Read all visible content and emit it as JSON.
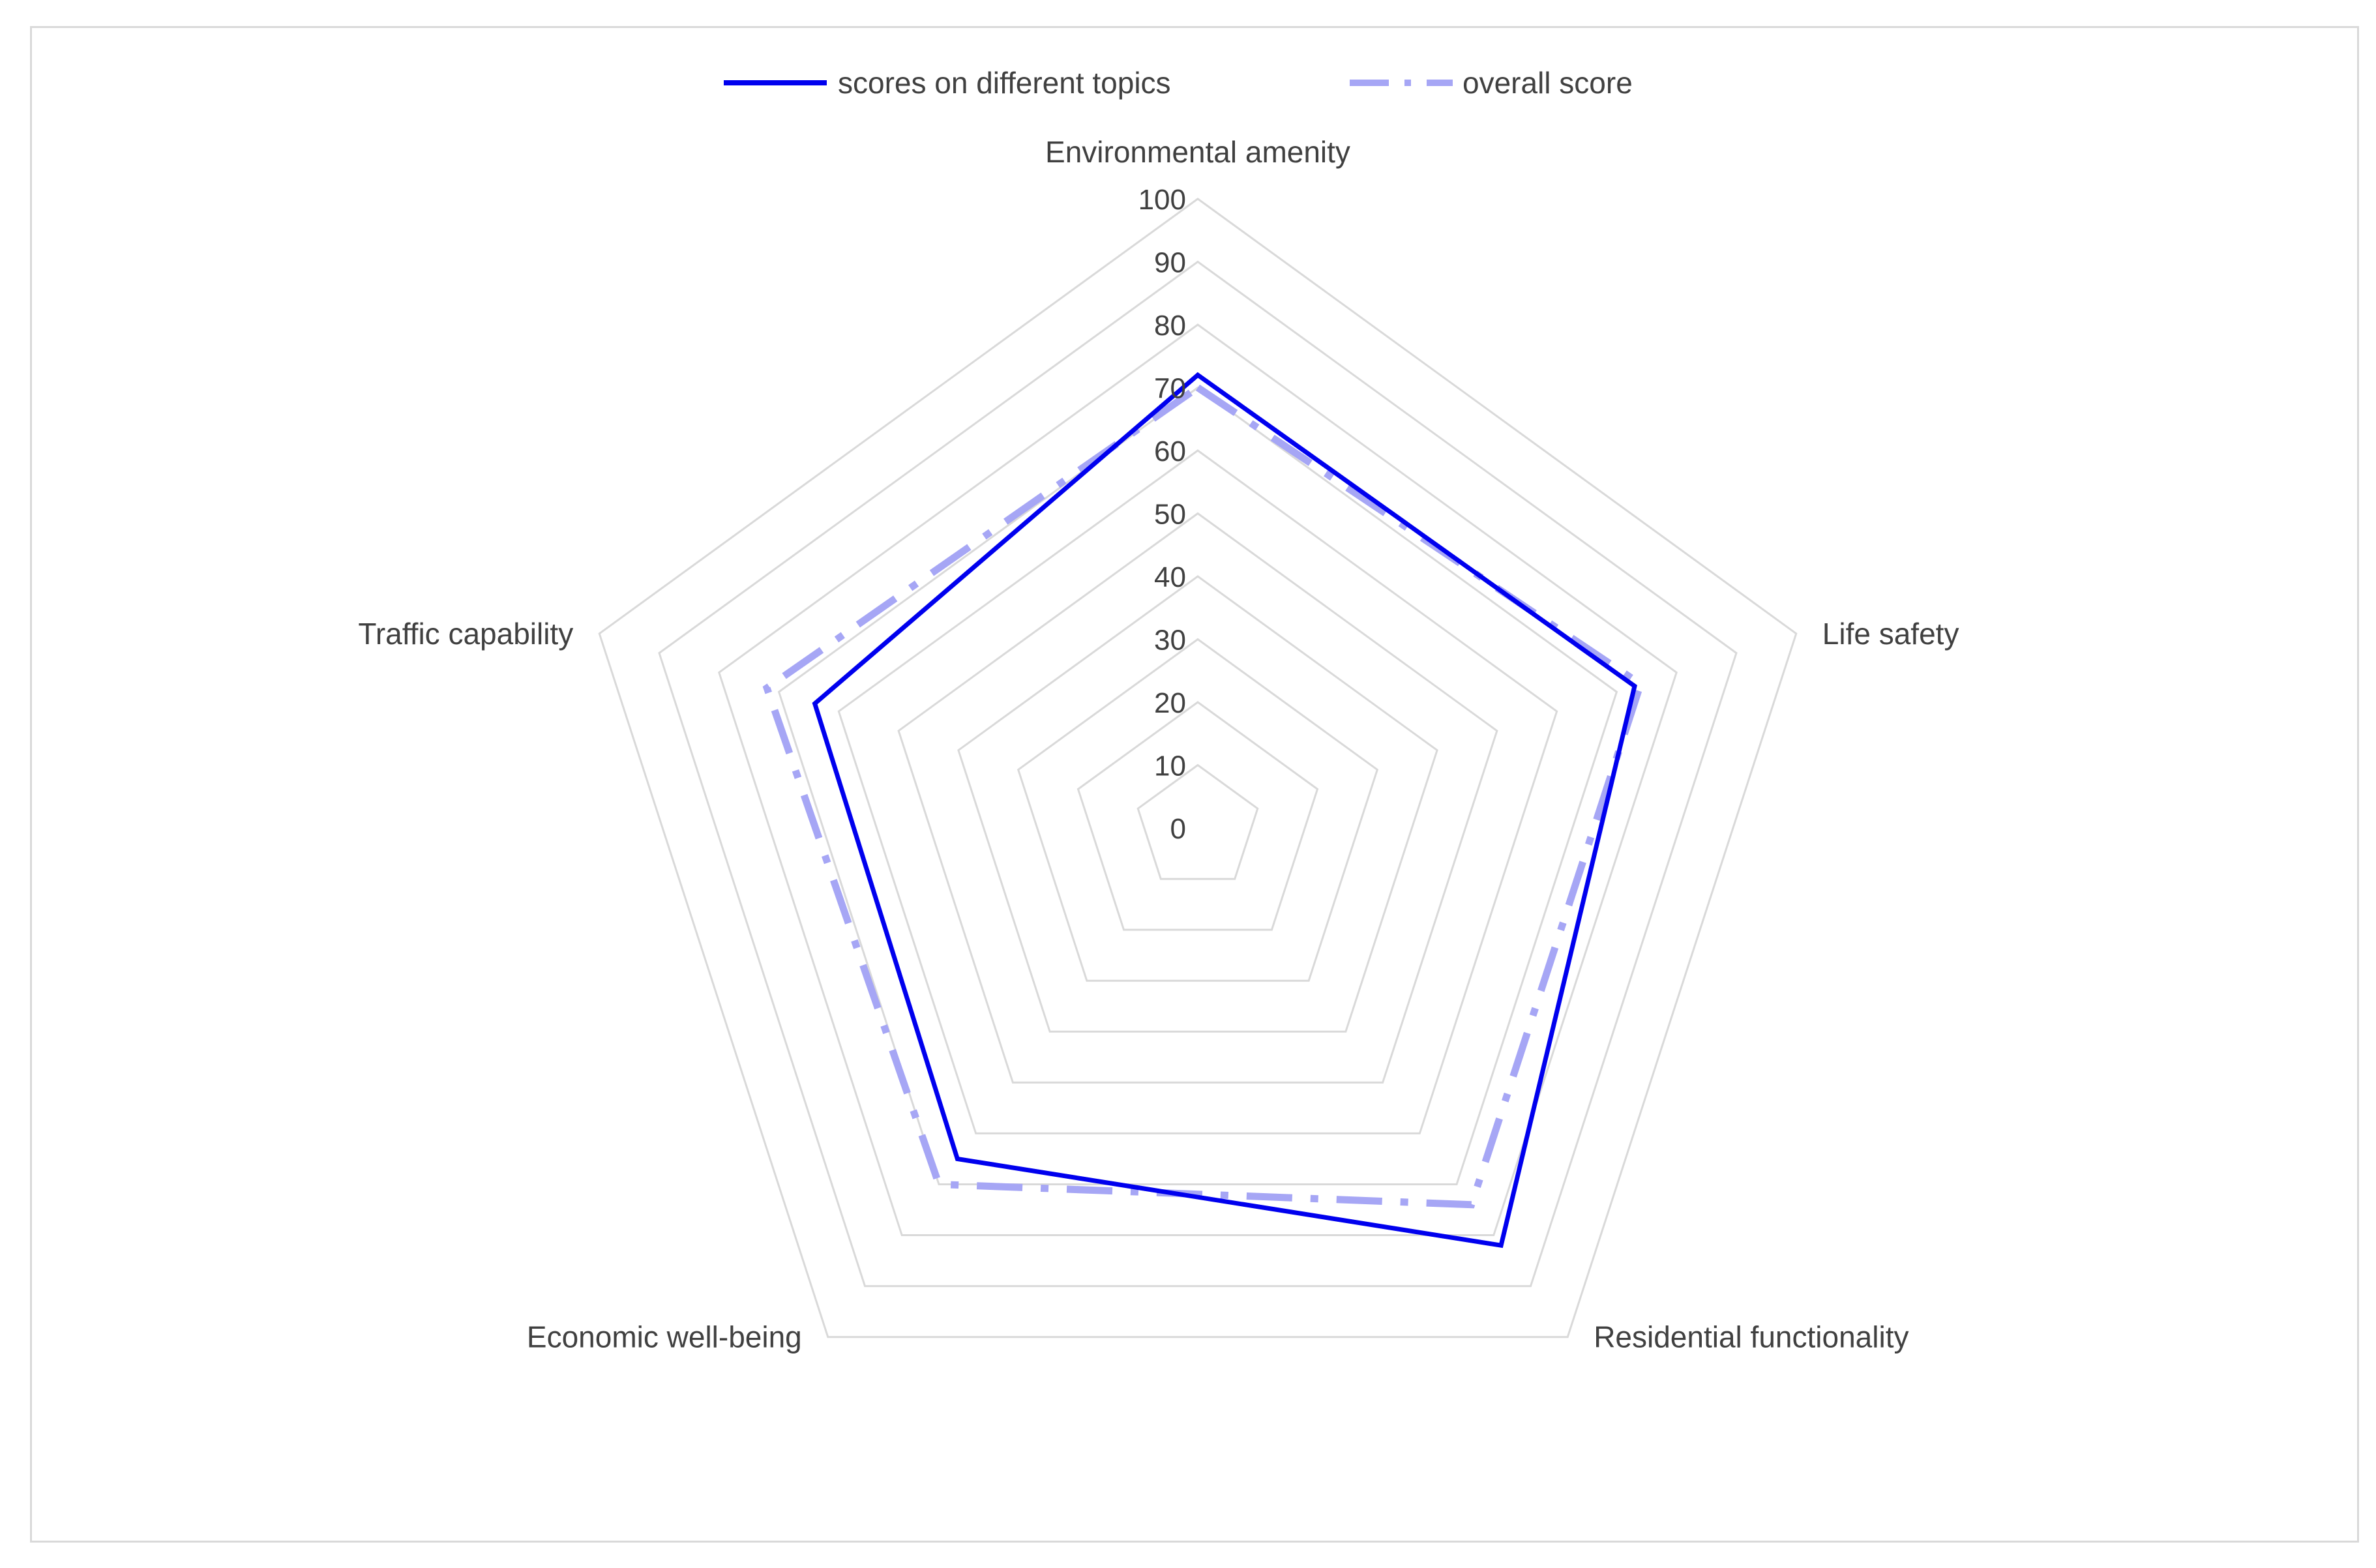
{
  "chart_data": {
    "type": "radar",
    "categories": [
      "Environmental amenity",
      "Life safety",
      "Residential functionality",
      "Economic well-being",
      "Traffic capability"
    ],
    "series": [
      {
        "name": "scores on different topics",
        "values": [
          72,
          73,
          82,
          65,
          64
        ],
        "color": "#0000ee",
        "style": "solid"
      },
      {
        "name": "overall score",
        "values": [
          70,
          74,
          74,
          70,
          72
        ],
        "color": "#a6a6f5",
        "style": "dash-dot"
      }
    ],
    "rlim": [
      0,
      100
    ],
    "ticks": [
      "0",
      "10",
      "20",
      "30",
      "40",
      "50",
      "60",
      "70",
      "80",
      "90",
      "100"
    ],
    "tick_values": [
      0,
      10,
      20,
      30,
      40,
      50,
      60,
      70,
      80,
      90,
      100
    ],
    "grid": true,
    "gridline_color": "#d9d9d9",
    "legend_position": "top"
  }
}
